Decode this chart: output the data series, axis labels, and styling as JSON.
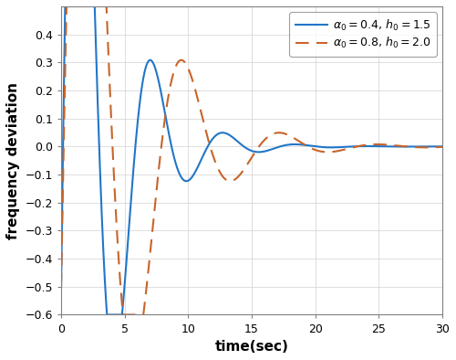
{
  "xlabel": "time(sec)",
  "ylabel": "frequency deviation",
  "xlim": [
    0,
    30
  ],
  "ylim": [
    -0.6,
    0.5
  ],
  "yticks": [
    -0.6,
    -0.5,
    -0.4,
    -0.3,
    -0.2,
    -0.1,
    0.0,
    0.1,
    0.2,
    0.3,
    0.4
  ],
  "xticks": [
    0,
    5,
    10,
    15,
    20,
    25,
    30
  ],
  "line1_color": "#2176c7",
  "line2_color": "#c8642a",
  "line1_label": "$\\alpha_0 = 0.4,\\, h_0 = 1.5$",
  "line2_label": "$\\alpha_0 = 0.8,\\, h_0 = 2.0$",
  "figsize": [
    5.0,
    3.94
  ],
  "dpi": 100
}
